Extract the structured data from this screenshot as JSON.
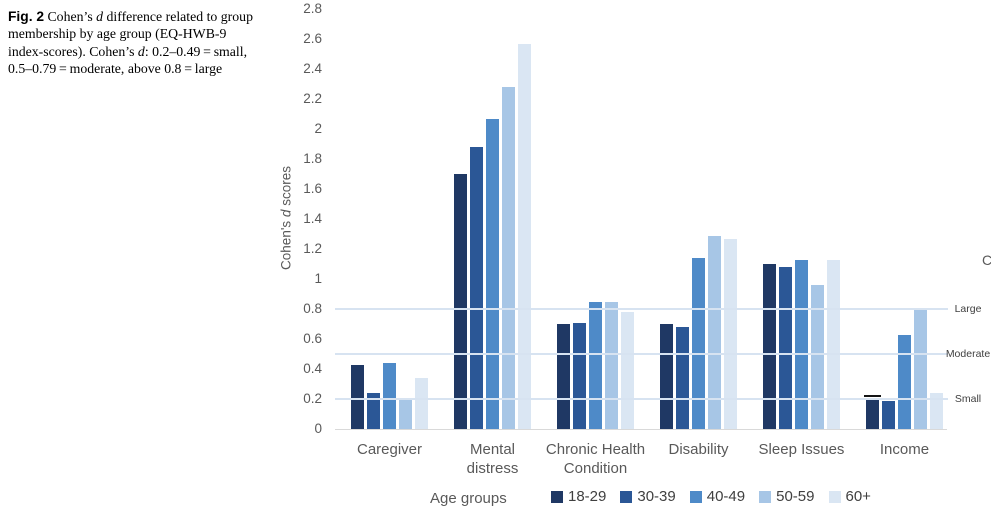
{
  "caption": {
    "fig_label": "Fig. 2",
    "p1": " Cohen’s ",
    "d1": "d",
    "p2": " difference related to group membership by age group (EQ-HWB-9 index-scores). Cohen’s ",
    "d2": "d",
    "p3": ": 0.2–0.49 = small, 0.5–0.79 = moderate, above 0.8 = large"
  },
  "y_axis_title": {
    "pre": "Cohen's ",
    "italic": "d",
    "post": " scores"
  },
  "chart_data": {
    "type": "bar",
    "categories": [
      "Caregiver",
      "Mental\ndistress",
      "Chronic Health\nCondition",
      "Disability",
      "Sleep Issues",
      "Income"
    ],
    "series": [
      {
        "name": "18-29",
        "color": "#1F3864",
        "values": [
          0.43,
          1.7,
          0.7,
          0.7,
          1.1,
          0.21
        ]
      },
      {
        "name": "30-39",
        "color": "#2B5796",
        "values": [
          0.24,
          1.88,
          0.71,
          0.68,
          1.08,
          0.19
        ]
      },
      {
        "name": "40-49",
        "color": "#4E8AC8",
        "values": [
          0.44,
          2.07,
          0.85,
          1.14,
          1.13,
          0.63
        ]
      },
      {
        "name": "50-59",
        "color": "#A7C6E6",
        "values": [
          0.21,
          2.28,
          0.85,
          1.29,
          0.96,
          0.8
        ]
      },
      {
        "name": "60+",
        "color": "#DAE6F3",
        "values": [
          0.34,
          2.57,
          0.78,
          1.27,
          1.13,
          0.24
        ]
      }
    ],
    "ylabel": "Cohen's d scores",
    "xlabel": "",
    "title": "",
    "ylim": [
      0,
      2.8
    ],
    "ytick_step": 0.2,
    "grid": "reference-lines-only",
    "reference_lines": [
      {
        "value": 0.8,
        "label": "Large"
      },
      {
        "value": 0.5,
        "label": "Moderate"
      },
      {
        "value": 0.2,
        "label": "Small"
      }
    ],
    "legend_title": "Age groups",
    "legend_position": "bottom",
    "annotations": [
      {
        "category": "Income",
        "series": "18-29",
        "type": "dash-cap",
        "value": 0.22
      }
    ],
    "clipped_edge_char": "C"
  }
}
